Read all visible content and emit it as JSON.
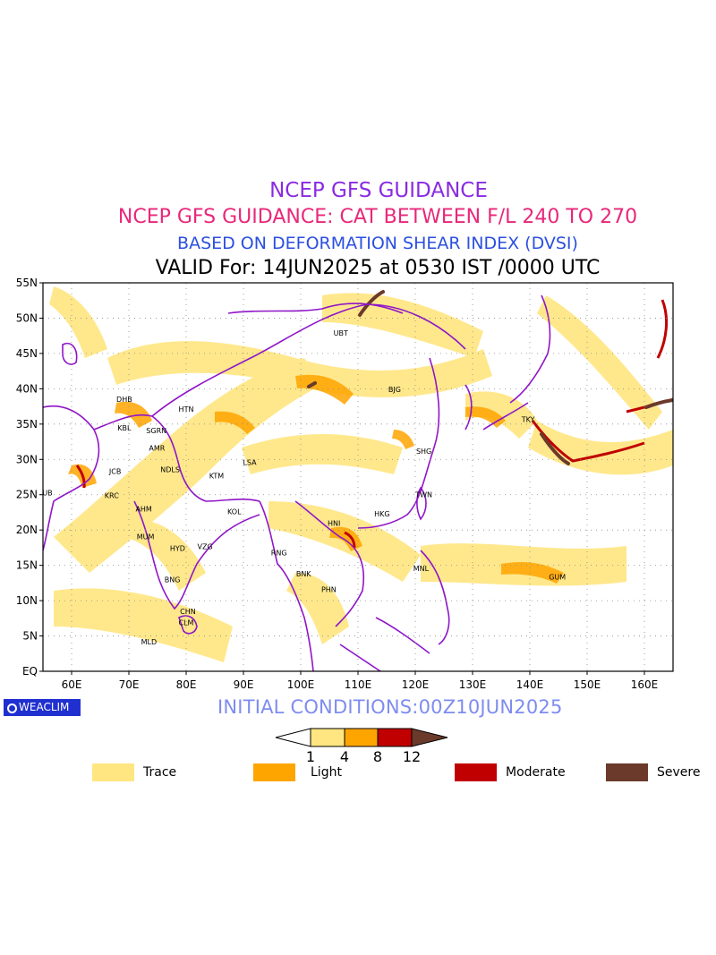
{
  "titles": {
    "line1": "NCEP GFS GUIDANCE",
    "line2": "NCEP GFS GUIDANCE: CAT BETWEEN F/L 240 TO 270",
    "line3": "BASED ON DEFORMATION SHEAR INDEX (DVSI)",
    "line4": "VALID For: 14JUN2025 at 0530 IST /0000 UTC"
  },
  "colors": {
    "trace": "#ffe680",
    "light": "#ffa500",
    "moderate": "#c00000",
    "severe": "#6b3a2a",
    "border": "#8f16c8",
    "brand": "#2030d0"
  },
  "axes": {
    "lon_labels": [
      "60E",
      "70E",
      "80E",
      "90E",
      "100E",
      "110E",
      "120E",
      "130E",
      "140E",
      "150E",
      "160E"
    ],
    "lon_values": [
      60,
      70,
      80,
      90,
      100,
      110,
      120,
      130,
      140,
      150,
      160
    ],
    "lat_labels": [
      "EQ",
      "5N",
      "10N",
      "15N",
      "20N",
      "25N",
      "30N",
      "35N",
      "40N",
      "45N",
      "50N",
      "55N"
    ],
    "lat_values": [
      0,
      5,
      10,
      15,
      20,
      25,
      30,
      35,
      40,
      45,
      50,
      55
    ],
    "lon_range": [
      55,
      165
    ],
    "lat_range": [
      0,
      55
    ],
    "grid": true
  },
  "stations": [
    {
      "code": "UBT",
      "lon": 107.0,
      "lat": 47.9
    },
    {
      "code": "BJG",
      "lon": 116.4,
      "lat": 39.9
    },
    {
      "code": "DHB",
      "lon": 69.2,
      "lat": 38.5
    },
    {
      "code": "HTN",
      "lon": 80.0,
      "lat": 37.1
    },
    {
      "code": "KBL",
      "lon": 69.2,
      "lat": 34.5
    },
    {
      "code": "SGRN",
      "lon": 74.8,
      "lat": 34.1
    },
    {
      "code": "AMR",
      "lon": 74.9,
      "lat": 31.6
    },
    {
      "code": "JCB",
      "lon": 67.6,
      "lat": 28.3
    },
    {
      "code": "NDLS",
      "lon": 77.2,
      "lat": 28.6
    },
    {
      "code": "KTM",
      "lon": 85.3,
      "lat": 27.7
    },
    {
      "code": "LSA",
      "lon": 91.1,
      "lat": 29.6
    },
    {
      "code": "SHG",
      "lon": 121.5,
      "lat": 31.2
    },
    {
      "code": "DUB",
      "lon": 55.3,
      "lat": 25.3
    },
    {
      "code": "KRC",
      "lon": 67.0,
      "lat": 24.9
    },
    {
      "code": "AHM",
      "lon": 72.6,
      "lat": 23.0
    },
    {
      "code": "KOL",
      "lon": 88.4,
      "lat": 22.6
    },
    {
      "code": "TWN",
      "lon": 121.5,
      "lat": 25.0
    },
    {
      "code": "HNI",
      "lon": 105.8,
      "lat": 21.0
    },
    {
      "code": "HKG",
      "lon": 114.2,
      "lat": 22.3
    },
    {
      "code": "MUM",
      "lon": 72.9,
      "lat": 19.1
    },
    {
      "code": "HYD",
      "lon": 78.5,
      "lat": 17.4
    },
    {
      "code": "VZG",
      "lon": 83.3,
      "lat": 17.7
    },
    {
      "code": "RNG",
      "lon": 96.2,
      "lat": 16.8
    },
    {
      "code": "BNK",
      "lon": 100.5,
      "lat": 13.8
    },
    {
      "code": "MNL",
      "lon": 121.0,
      "lat": 14.6
    },
    {
      "code": "GUM",
      "lon": 144.8,
      "lat": 13.4
    },
    {
      "code": "BNG",
      "lon": 77.6,
      "lat": 13.0
    },
    {
      "code": "PHN",
      "lon": 104.9,
      "lat": 11.6
    },
    {
      "code": "CHN",
      "lon": 80.3,
      "lat": 8.5
    },
    {
      "code": "CLM",
      "lon": 80.0,
      "lat": 6.9
    },
    {
      "code": "MLD",
      "lon": 73.5,
      "lat": 4.2
    },
    {
      "code": "TKY",
      "lon": 139.7,
      "lat": 35.7
    }
  ],
  "branding": "WEACLIM",
  "initial_conditions": "INITIAL CONDITIONS:00Z10JUN2025",
  "colorbar": {
    "ticks": [
      "1",
      "4",
      "8",
      "12"
    ]
  },
  "legend": [
    {
      "label": "Trace",
      "color": "#ffe680"
    },
    {
      "label": "Light",
      "color": "#ffa500"
    },
    {
      "label": "Moderate",
      "color": "#c00000"
    },
    {
      "label": "Severe",
      "color": "#6b3a2a"
    }
  ]
}
